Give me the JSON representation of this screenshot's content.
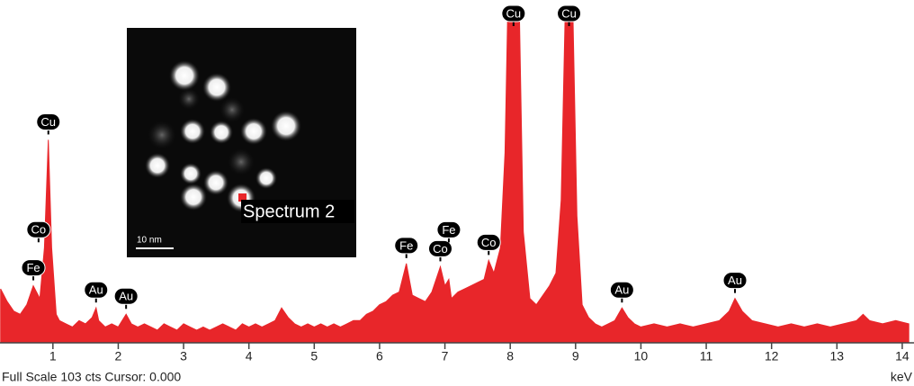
{
  "chart_data": {
    "type": "area",
    "x": [
      0.2,
      0.3,
      0.4,
      0.5,
      0.6,
      0.7,
      0.8,
      0.87,
      0.93,
      0.98,
      1.05,
      1.1,
      1.2,
      1.3,
      1.4,
      1.5,
      1.6,
      1.66,
      1.7,
      1.8,
      1.9,
      2.0,
      2.12,
      2.2,
      2.3,
      2.4,
      2.5,
      2.6,
      2.7,
      2.8,
      2.9,
      3.0,
      3.1,
      3.2,
      3.3,
      3.4,
      3.5,
      3.6,
      3.7,
      3.8,
      3.9,
      4.0,
      4.1,
      4.2,
      4.3,
      4.4,
      4.5,
      4.6,
      4.7,
      4.8,
      4.9,
      5.0,
      5.1,
      5.2,
      5.3,
      5.4,
      5.5,
      5.6,
      5.7,
      5.8,
      5.9,
      6.0,
      6.1,
      6.2,
      6.3,
      6.41,
      6.5,
      6.6,
      6.7,
      6.8,
      6.93,
      7.0,
      7.06,
      7.1,
      7.2,
      7.3,
      7.4,
      7.5,
      7.6,
      7.67,
      7.75,
      7.85,
      7.92,
      7.96,
      8.14,
      8.2,
      8.3,
      8.4,
      8.5,
      8.6,
      8.7,
      8.78,
      8.84,
      8.96,
      9.02,
      9.1,
      9.2,
      9.3,
      9.4,
      9.5,
      9.6,
      9.71,
      9.8,
      9.9,
      10.0,
      10.2,
      10.4,
      10.6,
      10.8,
      11.0,
      11.2,
      11.35,
      11.44,
      11.55,
      11.7,
      11.9,
      12.1,
      12.3,
      12.5,
      12.7,
      12.9,
      13.1,
      13.3,
      13.4,
      13.5,
      13.7,
      13.9,
      14.1
    ],
    "values": [
      17,
      13,
      10,
      9,
      12,
      18,
      14,
      30,
      64,
      30,
      9,
      7,
      6,
      5,
      7,
      6,
      8,
      11,
      7,
      5,
      6,
      5,
      9,
      6,
      5,
      6,
      5,
      4,
      6,
      5,
      4,
      6,
      5,
      4,
      5,
      4,
      5,
      6,
      5,
      4,
      6,
      5,
      6,
      5,
      6,
      7,
      11,
      8,
      6,
      5,
      6,
      5,
      6,
      5,
      6,
      5,
      6,
      7,
      7,
      9,
      10,
      12,
      13,
      15,
      16,
      25,
      15,
      14,
      13,
      16,
      24,
      18,
      20,
      14,
      16,
      17,
      18,
      19,
      20,
      26,
      22,
      30,
      60,
      103,
      103,
      35,
      14,
      12,
      15,
      18,
      22,
      45,
      103,
      103,
      40,
      12,
      8,
      6,
      5,
      6,
      7,
      11,
      8,
      6,
      5,
      6,
      5,
      6,
      5,
      6,
      7,
      10,
      14,
      10,
      7,
      6,
      5,
      6,
      5,
      6,
      5,
      6,
      7,
      9,
      7,
      6,
      7,
      6
    ],
    "color": "#e8262a",
    "xlim": [
      0.19,
      14.18
    ],
    "ylim": [
      0,
      103
    ],
    "xticks": [
      1,
      2,
      3,
      4,
      5,
      6,
      7,
      8,
      9,
      10,
      11,
      12,
      13,
      14
    ],
    "x_label": "keV",
    "footer": "Full Scale 103 cts Cursor: 0.000",
    "peak_labels": [
      {
        "element": "Fe",
        "x": 0.7
      },
      {
        "element": "Co",
        "x": 0.78
      },
      {
        "element": "Cu",
        "x": 0.93
      },
      {
        "element": "Au",
        "x": 1.66
      },
      {
        "element": "Au",
        "x": 2.12
      },
      {
        "element": "Fe",
        "x": 6.41
      },
      {
        "element": "Co",
        "x": 6.93
      },
      {
        "element": "Fe",
        "x": 7.06
      },
      {
        "element": "Co",
        "x": 7.67
      },
      {
        "element": "Cu",
        "x": 8.05
      },
      {
        "element": "Cu",
        "x": 8.9
      },
      {
        "element": "Au",
        "x": 9.71
      },
      {
        "element": "Au",
        "x": 11.44
      }
    ],
    "inset": {
      "caption": "Spectrum 2",
      "scale_bar": "10 nm"
    }
  }
}
